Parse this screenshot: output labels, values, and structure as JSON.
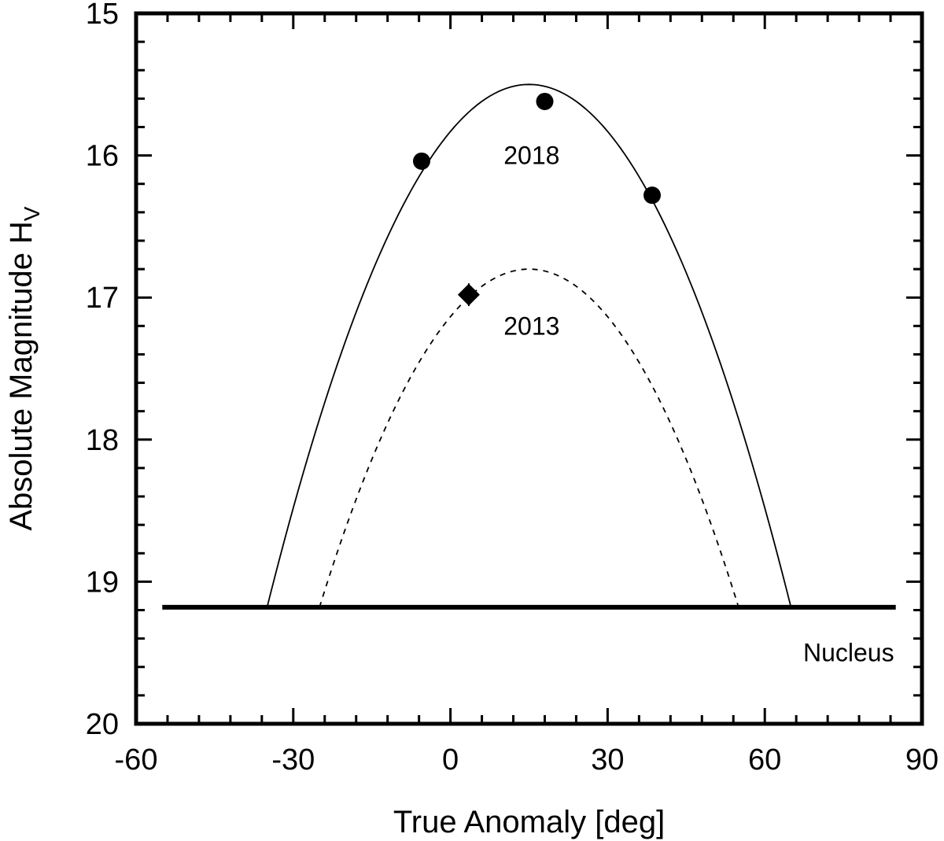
{
  "chart_data": {
    "type": "scatter",
    "xlabel": "True Anomaly [deg]",
    "ylabel_main": "Absolute Magnitude H",
    "ylabel_sub": "V",
    "xlim": [
      -60,
      90
    ],
    "ylim": [
      20,
      15
    ],
    "y_inverted": true,
    "x_major_ticks": [
      -60,
      -30,
      0,
      30,
      60,
      90
    ],
    "x_tick_labels": [
      "-60",
      "-30",
      "0",
      "30",
      "60",
      "90"
    ],
    "x_minor_step": 6,
    "y_major_ticks": [
      15,
      16,
      17,
      18,
      19,
      20
    ],
    "y_tick_labels": [
      "15",
      "16",
      "17",
      "18",
      "19",
      "20"
    ],
    "y_minor_step": 0.2,
    "grid": false,
    "series": [
      {
        "name": "2018",
        "marker": "circle",
        "points": [
          {
            "x": -5.5,
            "y": 16.04
          },
          {
            "x": 18.0,
            "y": 15.62
          },
          {
            "x": 38.5,
            "y": 16.28
          }
        ]
      },
      {
        "name": "2013",
        "marker": "diamond",
        "points": [
          {
            "x": 3.5,
            "y": 16.98,
            "yerr": 0.08
          }
        ]
      }
    ],
    "curves": [
      {
        "name": "2018",
        "style": "solid",
        "vertex_x": 15,
        "vertex_y": 15.5,
        "half_width": 50,
        "floor_y": 19.18
      },
      {
        "name": "2013",
        "style": "dashed",
        "vertex_x": 15,
        "vertex_y": 16.8,
        "half_width": 40,
        "floor_y": 19.18
      }
    ],
    "nucleus": {
      "label": "Nucleus",
      "y": 19.18,
      "x_range": [
        -55,
        85
      ]
    },
    "annotations": [
      {
        "text": "2018",
        "x": 15.5,
        "y": 16.0
      },
      {
        "text": "2013",
        "x": 15.5,
        "y": 17.2
      },
      {
        "text": "Nucleus",
        "x": 76,
        "y": 19.5
      }
    ]
  }
}
